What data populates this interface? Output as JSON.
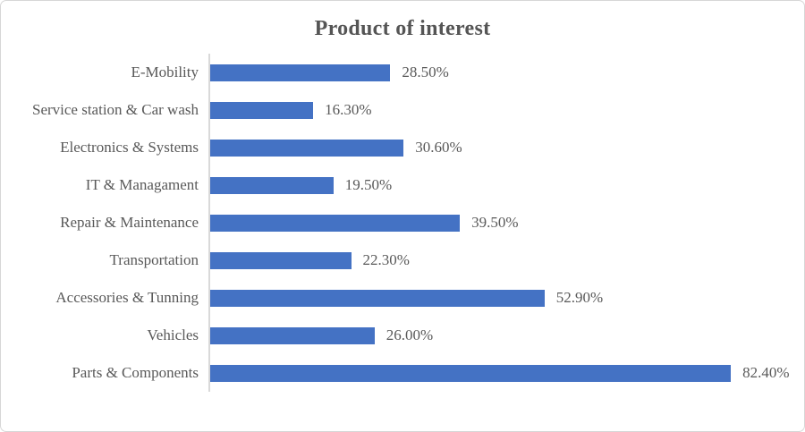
{
  "chart_data": {
    "type": "bar",
    "orientation": "horizontal",
    "title": "Product of interest",
    "categories": [
      "E-Mobility",
      "Service station & Car wash",
      "Electronics & Systems",
      "IT & Managament",
      "Repair & Maintenance",
      "Transportation",
      "Accessories & Tunning",
      "Vehicles",
      "Parts & Components"
    ],
    "values": [
      28.5,
      16.3,
      30.6,
      19.5,
      39.5,
      22.3,
      52.9,
      26.0,
      82.4
    ],
    "value_labels": [
      "28.50%",
      "16.30%",
      "30.60%",
      "19.50%",
      "39.50%",
      "22.30%",
      "52.90%",
      "26.00%",
      "82.40%"
    ],
    "xlabel": "",
    "ylabel": "",
    "xlim": [
      0,
      92
    ],
    "grid": false,
    "legend": false,
    "data_labels_shown": true,
    "bar_color": "#4472c4",
    "axis_line_color": "#d9d9d9",
    "text_color": "#595959",
    "title_color": "#555555",
    "frame_border_color": "#d7d7d7"
  }
}
